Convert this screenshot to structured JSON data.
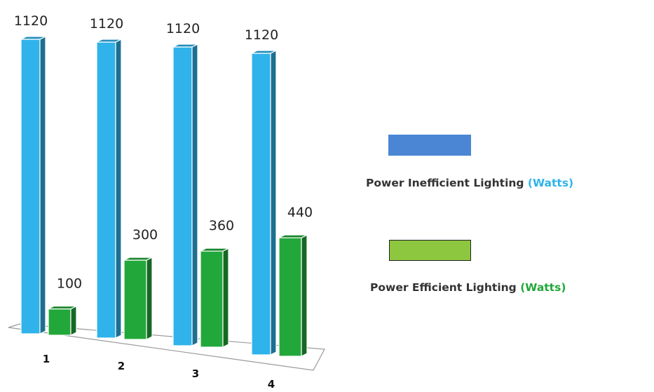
{
  "chart_data": {
    "type": "bar",
    "categories": [
      "1",
      "2",
      "3",
      "4"
    ],
    "series": [
      {
        "name": "Power Inefficient Lighting",
        "unit_label": "(Watts)",
        "values": [
          1120,
          1120,
          1120,
          1120
        ],
        "color": "#2FB3EA",
        "swatch_color": "#4A86D4"
      },
      {
        "name": "Power Efficient Lighting",
        "unit_label": "(Watts)",
        "values": [
          100,
          300,
          360,
          440
        ],
        "color": "#22A83A",
        "swatch_color": "#8DC63F"
      }
    ],
    "data_labels": {
      "series_0": [
        "1120",
        "1120",
        "1120",
        "1120"
      ],
      "series_1": [
        "100",
        "300",
        "360",
        "440"
      ]
    },
    "ylim": [
      0,
      1120
    ],
    "grid": false,
    "legend_position": "right",
    "legend_unit_colors": [
      "#2FB3EA",
      "#22A83A"
    ]
  }
}
